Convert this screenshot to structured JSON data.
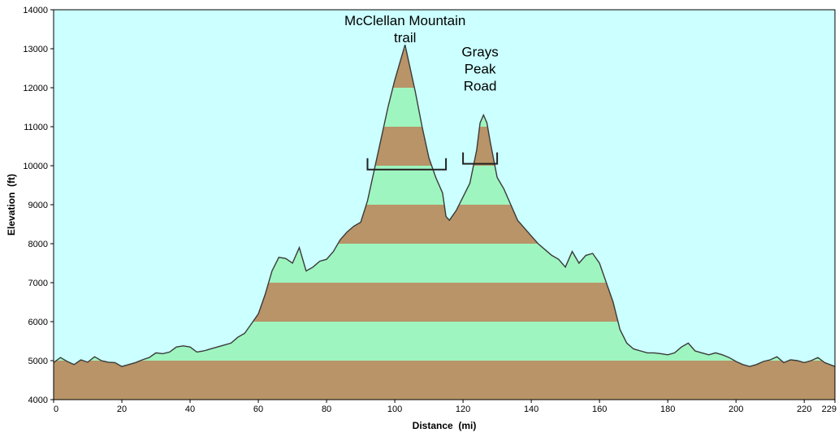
{
  "chart_data": {
    "type": "area",
    "xlabel": "Distance  (mi)",
    "ylabel": "Elevation  (ft)",
    "xlim": [
      0,
      229
    ],
    "ylim": [
      4000,
      14000
    ],
    "x_ticks": [
      0,
      20,
      40,
      60,
      80,
      100,
      120,
      140,
      160,
      180,
      200,
      220,
      229
    ],
    "y_ticks": [
      4000,
      5000,
      6000,
      7000,
      8000,
      9000,
      10000,
      11000,
      12000,
      13000,
      14000
    ],
    "grid": false,
    "legend": "none",
    "colors": {
      "background": "#ccffff",
      "band_brown": "#b89468",
      "band_green": "#9ef5bf",
      "profile_line": "#3a3a3a",
      "bracket": "#222222"
    },
    "band_interval_ft": 1000,
    "series": [
      {
        "x": [
          0,
          2,
          4,
          6,
          8,
          10,
          12,
          14,
          16,
          18,
          20,
          22,
          24,
          26,
          28,
          30,
          32,
          34,
          36,
          38,
          40,
          42,
          44,
          46,
          48,
          50,
          52,
          54,
          56,
          58,
          60,
          62,
          64,
          66,
          68,
          70,
          72,
          74,
          76,
          78,
          80,
          82,
          84,
          86,
          88,
          90,
          92,
          94,
          96,
          98,
          100,
          102,
          103,
          104,
          106,
          108,
          110,
          112,
          114,
          115,
          116,
          118,
          120,
          122,
          124,
          125,
          126,
          127,
          128,
          130,
          132,
          134,
          136,
          138,
          140,
          142,
          144,
          146,
          148,
          150,
          152,
          154,
          156,
          158,
          160,
          162,
          164,
          166,
          168,
          170,
          172,
          174,
          176,
          178,
          180,
          182,
          184,
          186,
          188,
          190,
          192,
          194,
          196,
          198,
          200,
          202,
          204,
          206,
          208,
          210,
          212,
          214,
          216,
          218,
          220,
          222,
          224,
          226,
          229
        ],
        "y": [
          4950,
          5080,
          4980,
          4900,
          5020,
          4960,
          5100,
          5000,
          4960,
          4950,
          4850,
          4900,
          4950,
          5020,
          5080,
          5200,
          5180,
          5220,
          5350,
          5380,
          5350,
          5220,
          5250,
          5300,
          5350,
          5400,
          5450,
          5600,
          5700,
          5950,
          6200,
          6700,
          7300,
          7650,
          7620,
          7500,
          7900,
          7300,
          7400,
          7550,
          7600,
          7800,
          8100,
          8300,
          8450,
          8550,
          9100,
          9900,
          10700,
          11500,
          12200,
          12800,
          13100,
          12700,
          11900,
          11000,
          10200,
          9700,
          9300,
          8700,
          8600,
          8850,
          9200,
          9550,
          10400,
          11100,
          11300,
          11100,
          10600,
          9700,
          9400,
          9000,
          8600,
          8400,
          8200,
          8000,
          7850,
          7700,
          7600,
          7400,
          7800,
          7500,
          7700,
          7750,
          7500,
          7000,
          6500,
          5800,
          5450,
          5300,
          5250,
          5200,
          5200,
          5180,
          5150,
          5200,
          5350,
          5450,
          5250,
          5200,
          5150,
          5200,
          5150,
          5080,
          4980,
          4900,
          4850,
          4900,
          4980,
          5020,
          5100,
          4950,
          5020,
          5000,
          4950,
          5000,
          5080,
          4950,
          4850
        ]
      }
    ],
    "annotations": [
      {
        "lines": [
          "McClellan Mountain",
          "trail"
        ],
        "x": 103,
        "y": 13600,
        "bracket": [
          92,
          115,
          9900
        ]
      },
      {
        "lines": [
          "Grays",
          "Peak",
          "Road"
        ],
        "x": 125,
        "y": 12800,
        "bracket": [
          120,
          130,
          10050
        ]
      }
    ]
  }
}
